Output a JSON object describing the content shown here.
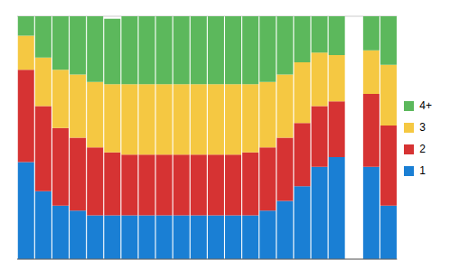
{
  "chart_data": {
    "type": "bar",
    "stacked": true,
    "categories": [
      null,
      null,
      null,
      null,
      null,
      null,
      null,
      null,
      null,
      null,
      null,
      null,
      null,
      null,
      null,
      null,
      null,
      null,
      null,
      null,
      null,
      null
    ],
    "series": [
      {
        "name": "1",
        "color": "#1a7fd4",
        "values": [
          40,
          28,
          22,
          20,
          18,
          18,
          18,
          18,
          18,
          18,
          18,
          18,
          18,
          18,
          20,
          24,
          30,
          38,
          42,
          0,
          38,
          22
        ]
      },
      {
        "name": "2",
        "color": "#d63333",
        "values": [
          38,
          35,
          32,
          30,
          28,
          26,
          25,
          25,
          25,
          25,
          25,
          25,
          25,
          26,
          26,
          26,
          26,
          25,
          23,
          0,
          30,
          33
        ]
      },
      {
        "name": "3",
        "color": "#f5c842",
        "values": [
          14,
          20,
          24,
          26,
          27,
          28,
          29,
          29,
          29,
          29,
          29,
          29,
          29,
          28,
          27,
          26,
          25,
          22,
          19,
          0,
          18,
          25
        ]
      },
      {
        "name": "4+",
        "color": "#5cb85c",
        "values": [
          8,
          17,
          22,
          24,
          27,
          27,
          28,
          28,
          28,
          28,
          28,
          28,
          28,
          28,
          27,
          24,
          19,
          15,
          16,
          0,
          14,
          20
        ]
      }
    ],
    "ylim": [
      0,
      100
    ],
    "yticks": [
      0,
      10,
      20,
      30,
      40,
      50,
      60,
      70,
      80,
      90,
      100
    ],
    "grid": true,
    "legend": "right",
    "tick_labels": false
  }
}
